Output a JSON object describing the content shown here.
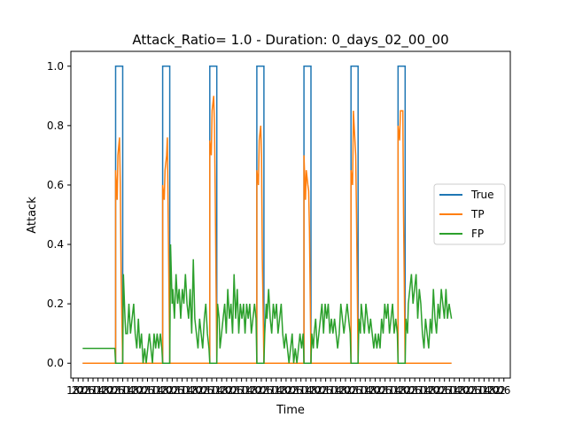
{
  "chart_data": {
    "type": "line",
    "title": "Attack_Ratio= 1.0 - Duration: 0_days_02_00_00",
    "xlabel": "Time",
    "ylabel": "Attack",
    "xlim": [
      0,
      56
    ],
    "ylim": [
      -0.05,
      1.05
    ],
    "y_ticks": [
      0.0,
      0.2,
      0.4,
      0.6,
      0.8,
      1.0
    ],
    "y_tick_labels": [
      "0.0",
      "0.2",
      "0.4",
      "0.6",
      "0.8",
      "1.0"
    ],
    "x_tick_labels": [
      "18",
      "22",
      "02",
      "06",
      "10",
      "14",
      "18",
      "22",
      "02",
      "06",
      "10",
      "14",
      "18",
      "22",
      "02",
      "06",
      "10",
      "14",
      "18",
      "22",
      "02",
      "06",
      "10",
      "14",
      "18",
      "22",
      "02",
      "06",
      "10",
      "14",
      "18",
      "22",
      "02",
      "06",
      "10",
      "14",
      "18",
      "22",
      "02",
      "06",
      "10",
      "14",
      "18",
      "22",
      "02",
      "06",
      "10",
      "14",
      "18",
      "22",
      "02",
      "06",
      "10",
      "14",
      "18",
      "22",
      "02",
      "06",
      "10",
      "14",
      "18",
      "22",
      "02",
      "06",
      "10",
      "14",
      "18",
      "22",
      "02",
      "06",
      "10",
      "14",
      "18",
      "22",
      "02",
      "06",
      "10",
      "14",
      "18",
      "22",
      "02",
      "06",
      "10",
      "14",
      "18",
      "22",
      "02",
      "06"
    ],
    "grid": false,
    "legend_position": "center-right",
    "series": [
      {
        "name": "True",
        "color": "#1f77b4",
        "points": [
          [
            1.5,
            0
          ],
          [
            5.7,
            0
          ],
          [
            5.7,
            1
          ],
          [
            6.6,
            1
          ],
          [
            6.6,
            0
          ],
          [
            11.7,
            0
          ],
          [
            11.7,
            1
          ],
          [
            12.6,
            1
          ],
          [
            12.6,
            0
          ],
          [
            17.7,
            0
          ],
          [
            17.7,
            1
          ],
          [
            18.6,
            1
          ],
          [
            18.6,
            0
          ],
          [
            23.7,
            0
          ],
          [
            23.7,
            1
          ],
          [
            24.6,
            1
          ],
          [
            24.6,
            0
          ],
          [
            29.7,
            0
          ],
          [
            29.7,
            1
          ],
          [
            30.6,
            1
          ],
          [
            30.6,
            0
          ],
          [
            35.7,
            0
          ],
          [
            35.7,
            1
          ],
          [
            36.6,
            1
          ],
          [
            36.6,
            0
          ],
          [
            41.7,
            0
          ],
          [
            41.7,
            1
          ],
          [
            42.6,
            1
          ],
          [
            42.6,
            0
          ],
          [
            48.5,
            0
          ]
        ]
      },
      {
        "name": "TP",
        "color": "#ff7f0e",
        "points": [
          [
            1.5,
            0
          ],
          [
            5.7,
            0
          ],
          [
            5.7,
            0.65
          ],
          [
            5.9,
            0.55
          ],
          [
            6.0,
            0.7
          ],
          [
            6.2,
            0.76
          ],
          [
            6.3,
            0.6
          ],
          [
            6.4,
            0.3
          ],
          [
            6.6,
            0
          ],
          [
            11.7,
            0
          ],
          [
            11.7,
            0.6
          ],
          [
            11.9,
            0.55
          ],
          [
            12.0,
            0.65
          ],
          [
            12.2,
            0.7
          ],
          [
            12.3,
            0.76
          ],
          [
            12.4,
            0.5
          ],
          [
            12.6,
            0
          ],
          [
            17.7,
            0
          ],
          [
            17.7,
            0.75
          ],
          [
            17.9,
            0.7
          ],
          [
            18.0,
            0.85
          ],
          [
            18.2,
            0.9
          ],
          [
            18.3,
            0.8
          ],
          [
            18.4,
            0.55
          ],
          [
            18.6,
            0
          ],
          [
            23.7,
            0
          ],
          [
            23.7,
            0.65
          ],
          [
            23.9,
            0.6
          ],
          [
            24.0,
            0.75
          ],
          [
            24.2,
            0.8
          ],
          [
            24.3,
            0.7
          ],
          [
            24.4,
            0.35
          ],
          [
            24.6,
            0
          ],
          [
            29.7,
            0
          ],
          [
            29.7,
            0.7
          ],
          [
            29.9,
            0.55
          ],
          [
            30.0,
            0.65
          ],
          [
            30.2,
            0.6
          ],
          [
            30.3,
            0.58
          ],
          [
            30.4,
            0.45
          ],
          [
            30.6,
            0
          ],
          [
            35.7,
            0
          ],
          [
            35.7,
            0.65
          ],
          [
            35.9,
            0.6
          ],
          [
            36.0,
            0.85
          ],
          [
            36.2,
            0.75
          ],
          [
            36.3,
            0.7
          ],
          [
            36.4,
            0.5
          ],
          [
            36.6,
            0
          ],
          [
            41.7,
            0
          ],
          [
            41.7,
            0.8
          ],
          [
            41.9,
            0.75
          ],
          [
            42.0,
            0.85
          ],
          [
            42.2,
            0.85
          ],
          [
            42.3,
            0.85
          ],
          [
            42.4,
            0.5
          ],
          [
            42.6,
            0
          ],
          [
            48.5,
            0
          ]
        ]
      },
      {
        "name": "FP",
        "color": "#2ca02c",
        "points": [
          [
            1.5,
            0.05
          ],
          [
            2.0,
            0.05
          ],
          [
            2.3,
            0.05
          ],
          [
            2.6,
            0.05
          ],
          [
            2.9,
            0.05
          ],
          [
            3.2,
            0.05
          ],
          [
            3.5,
            0.05
          ],
          [
            3.8,
            0.05
          ],
          [
            4.1,
            0.05
          ],
          [
            4.4,
            0.05
          ],
          [
            4.7,
            0.05
          ],
          [
            5.0,
            0.05
          ],
          [
            5.3,
            0.05
          ],
          [
            5.6,
            0.05
          ],
          [
            5.7,
            0
          ],
          [
            6.6,
            0
          ],
          [
            6.7,
            0.3
          ],
          [
            6.9,
            0.15
          ],
          [
            7.0,
            0.1
          ],
          [
            7.2,
            0.1
          ],
          [
            7.4,
            0.2
          ],
          [
            7.6,
            0.1
          ],
          [
            7.8,
            0.15
          ],
          [
            8.0,
            0.2
          ],
          [
            8.2,
            0.1
          ],
          [
            8.4,
            0.05
          ],
          [
            8.6,
            0.15
          ],
          [
            8.8,
            0.05
          ],
          [
            9.0,
            0.1
          ],
          [
            9.2,
            0
          ],
          [
            9.4,
            0.05
          ],
          [
            9.6,
            0
          ],
          [
            9.8,
            0.05
          ],
          [
            10.0,
            0.1
          ],
          [
            10.2,
            0.05
          ],
          [
            10.4,
            0
          ],
          [
            10.6,
            0.1
          ],
          [
            10.8,
            0.05
          ],
          [
            11.0,
            0.1
          ],
          [
            11.2,
            0.05
          ],
          [
            11.4,
            0.1
          ],
          [
            11.6,
            0.05
          ],
          [
            11.7,
            0
          ],
          [
            12.6,
            0
          ],
          [
            12.7,
            0.4
          ],
          [
            12.9,
            0.2
          ],
          [
            13.0,
            0.25
          ],
          [
            13.2,
            0.15
          ],
          [
            13.4,
            0.3
          ],
          [
            13.6,
            0.2
          ],
          [
            13.8,
            0.25
          ],
          [
            14.0,
            0.15
          ],
          [
            14.2,
            0.25
          ],
          [
            14.4,
            0.2
          ],
          [
            14.6,
            0.3
          ],
          [
            14.8,
            0.2
          ],
          [
            15.0,
            0.15
          ],
          [
            15.2,
            0.25
          ],
          [
            15.4,
            0.1
          ],
          [
            15.6,
            0.35
          ],
          [
            15.8,
            0.15
          ],
          [
            16.0,
            0.1
          ],
          [
            16.2,
            0.05
          ],
          [
            16.4,
            0.15
          ],
          [
            16.6,
            0.1
          ],
          [
            16.8,
            0.05
          ],
          [
            17.0,
            0.15
          ],
          [
            17.2,
            0.2
          ],
          [
            17.4,
            0.1
          ],
          [
            17.6,
            0.05
          ],
          [
            17.7,
            0
          ],
          [
            18.6,
            0
          ],
          [
            18.7,
            0.2
          ],
          [
            18.9,
            0.15
          ],
          [
            19.0,
            0.05
          ],
          [
            19.2,
            0.1
          ],
          [
            19.4,
            0.15
          ],
          [
            19.6,
            0.2
          ],
          [
            19.8,
            0.1
          ],
          [
            20.0,
            0.25
          ],
          [
            20.2,
            0.15
          ],
          [
            20.4,
            0.2
          ],
          [
            20.6,
            0.1
          ],
          [
            20.8,
            0.3
          ],
          [
            21.0,
            0.15
          ],
          [
            21.2,
            0.25
          ],
          [
            21.4,
            0.1
          ],
          [
            21.6,
            0.2
          ],
          [
            21.8,
            0.15
          ],
          [
            22.0,
            0.2
          ],
          [
            22.2,
            0.1
          ],
          [
            22.4,
            0.2
          ],
          [
            22.6,
            0.15
          ],
          [
            22.8,
            0.2
          ],
          [
            23.0,
            0.1
          ],
          [
            23.2,
            0.15
          ],
          [
            23.4,
            0.2
          ],
          [
            23.6,
            0.15
          ],
          [
            23.7,
            0
          ],
          [
            24.6,
            0
          ],
          [
            24.7,
            0.1
          ],
          [
            24.9,
            0.2
          ],
          [
            25.0,
            0.15
          ],
          [
            25.2,
            0.25
          ],
          [
            25.4,
            0.15
          ],
          [
            25.6,
            0.1
          ],
          [
            25.8,
            0.2
          ],
          [
            26.0,
            0.15
          ],
          [
            26.2,
            0.2
          ],
          [
            26.4,
            0.1
          ],
          [
            26.6,
            0.15
          ],
          [
            26.8,
            0.2
          ],
          [
            27.0,
            0.1
          ],
          [
            27.2,
            0.05
          ],
          [
            27.4,
            0.1
          ],
          [
            27.6,
            0.05
          ],
          [
            27.8,
            0
          ],
          [
            28.0,
            0.05
          ],
          [
            28.2,
            0.1
          ],
          [
            28.4,
            0
          ],
          [
            28.6,
            0.05
          ],
          [
            28.8,
            0
          ],
          [
            29.0,
            0.05
          ],
          [
            29.2,
            0.1
          ],
          [
            29.4,
            0.05
          ],
          [
            29.6,
            0.1
          ],
          [
            29.7,
            0
          ],
          [
            30.6,
            0
          ],
          [
            30.7,
            0.1
          ],
          [
            30.9,
            0.05
          ],
          [
            31.0,
            0.1
          ],
          [
            31.2,
            0.15
          ],
          [
            31.4,
            0.05
          ],
          [
            31.6,
            0.1
          ],
          [
            31.8,
            0.15
          ],
          [
            32.0,
            0.2
          ],
          [
            32.2,
            0.1
          ],
          [
            32.4,
            0.2
          ],
          [
            32.6,
            0.15
          ],
          [
            32.8,
            0.2
          ],
          [
            33.0,
            0.1
          ],
          [
            33.2,
            0.15
          ],
          [
            33.4,
            0.1
          ],
          [
            33.6,
            0.15
          ],
          [
            33.8,
            0.1
          ],
          [
            34.0,
            0.05
          ],
          [
            34.2,
            0.1
          ],
          [
            34.4,
            0.2
          ],
          [
            34.6,
            0.15
          ],
          [
            34.8,
            0.1
          ],
          [
            35.0,
            0.15
          ],
          [
            35.2,
            0.2
          ],
          [
            35.4,
            0.15
          ],
          [
            35.6,
            0.1
          ],
          [
            35.7,
            0
          ],
          [
            36.6,
            0
          ],
          [
            36.7,
            0.15
          ],
          [
            36.9,
            0.1
          ],
          [
            37.0,
            0.2
          ],
          [
            37.2,
            0.15
          ],
          [
            37.4,
            0.1
          ],
          [
            37.6,
            0.2
          ],
          [
            37.8,
            0.15
          ],
          [
            38.0,
            0.1
          ],
          [
            38.2,
            0.15
          ],
          [
            38.4,
            0.1
          ],
          [
            38.6,
            0.05
          ],
          [
            38.8,
            0.1
          ],
          [
            39.0,
            0.05
          ],
          [
            39.2,
            0.1
          ],
          [
            39.4,
            0.05
          ],
          [
            39.6,
            0.15
          ],
          [
            39.8,
            0.1
          ],
          [
            40.0,
            0.2
          ],
          [
            40.2,
            0.15
          ],
          [
            40.4,
            0.2
          ],
          [
            40.6,
            0.1
          ],
          [
            40.8,
            0.15
          ],
          [
            41.0,
            0.2
          ],
          [
            41.2,
            0.1
          ],
          [
            41.4,
            0.15
          ],
          [
            41.6,
            0.1
          ],
          [
            41.7,
            0
          ],
          [
            42.6,
            0
          ],
          [
            42.7,
            0.15
          ],
          [
            42.9,
            0.1
          ],
          [
            43.0,
            0.2
          ],
          [
            43.2,
            0.25
          ],
          [
            43.4,
            0.3
          ],
          [
            43.6,
            0.2
          ],
          [
            43.8,
            0.25
          ],
          [
            44.0,
            0.3
          ],
          [
            44.2,
            0.15
          ],
          [
            44.4,
            0.25
          ],
          [
            44.6,
            0.2
          ],
          [
            44.8,
            0.1
          ],
          [
            45.0,
            0.05
          ],
          [
            45.2,
            0.15
          ],
          [
            45.4,
            0.1
          ],
          [
            45.6,
            0.05
          ],
          [
            45.8,
            0.15
          ],
          [
            46.0,
            0.1
          ],
          [
            46.2,
            0.25
          ],
          [
            46.4,
            0.15
          ],
          [
            46.6,
            0.1
          ],
          [
            46.8,
            0.2
          ],
          [
            47.0,
            0.15
          ],
          [
            47.2,
            0.25
          ],
          [
            47.4,
            0.2
          ],
          [
            47.6,
            0.15
          ],
          [
            47.8,
            0.25
          ],
          [
            48.0,
            0.15
          ],
          [
            48.2,
            0.2
          ],
          [
            48.5,
            0.15
          ]
        ]
      }
    ]
  }
}
